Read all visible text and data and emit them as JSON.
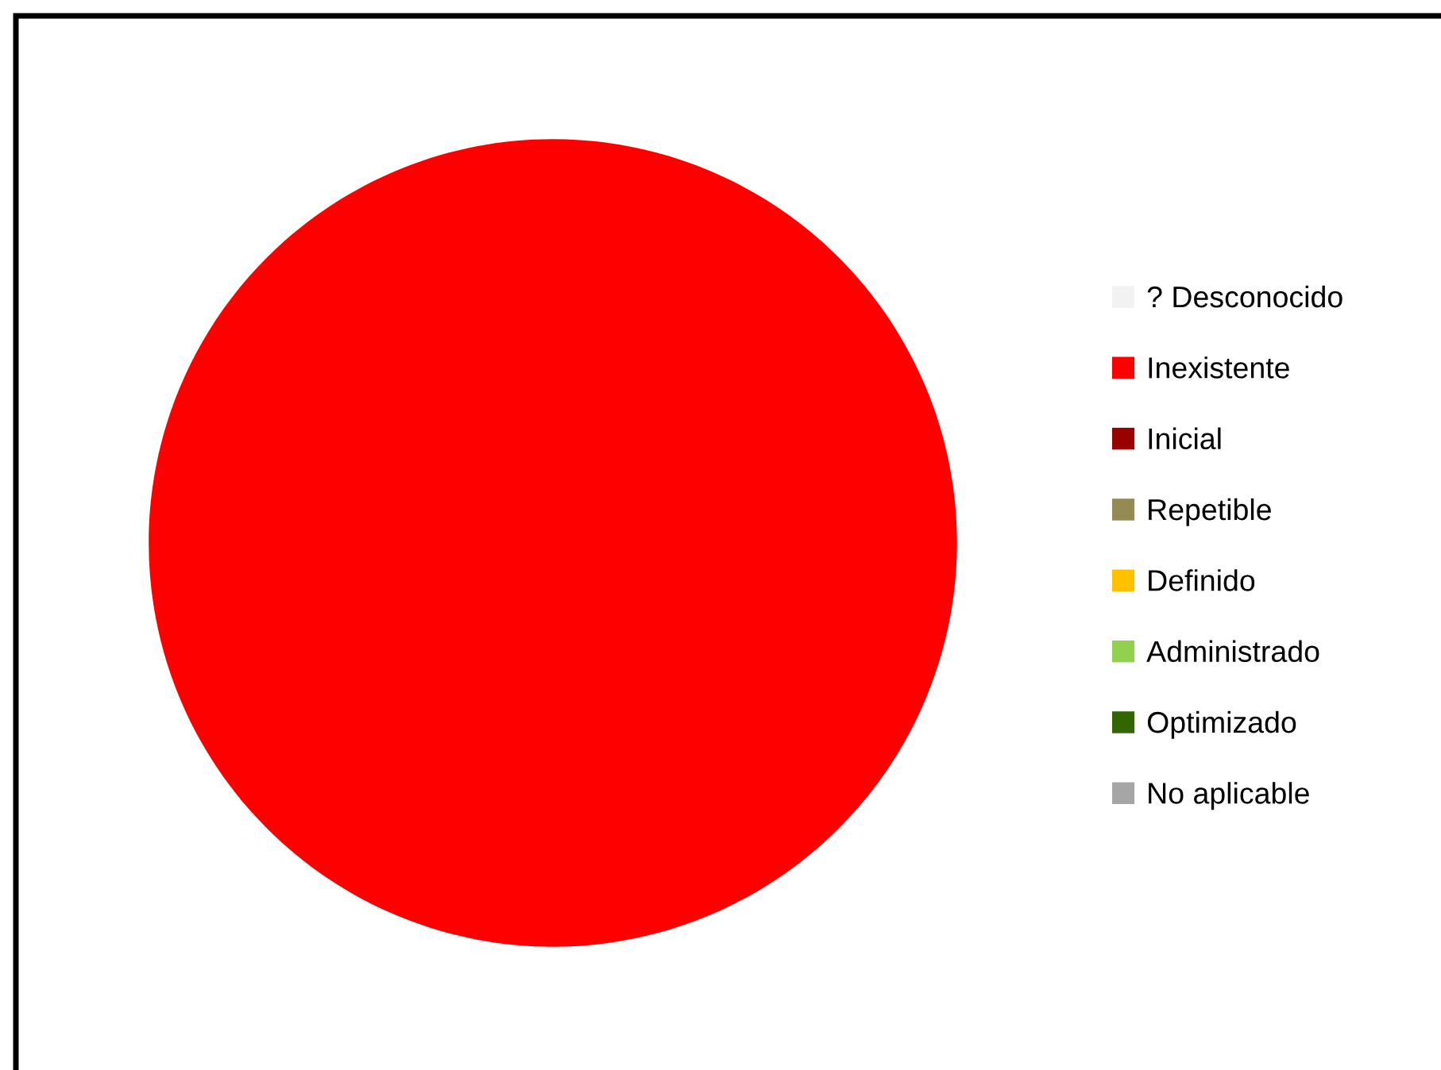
{
  "chart_data": {
    "type": "pie",
    "categories": [
      "? Desconocido",
      "Inexistente",
      "Inicial",
      "Repetible",
      "Definido",
      "Administrado",
      "Optimizado",
      "No aplicable"
    ],
    "values": [
      0,
      100,
      0,
      0,
      0,
      0,
      0,
      0
    ],
    "colors": [
      "#f2f2f2",
      "#ff0000",
      "#990000",
      "#948a54",
      "#ffc000",
      "#92d050",
      "#336600",
      "#a6a6a6"
    ],
    "legend": "right"
  }
}
